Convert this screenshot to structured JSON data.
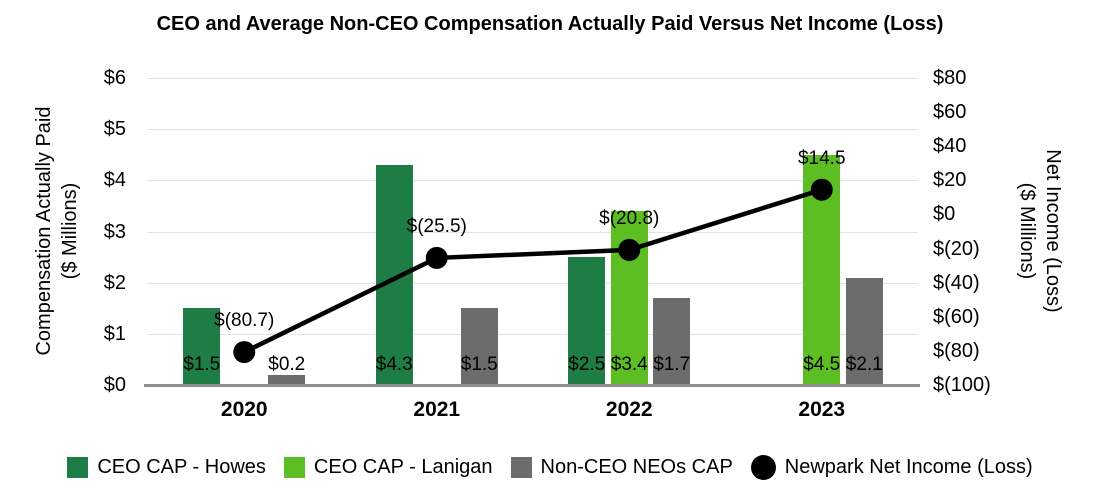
{
  "title": "CEO and Average Non-CEO Compensation Actually Paid Versus Net Income (Loss)",
  "colors": {
    "howes_green": "#1e7c45",
    "lanigan_green": "#5cbe23",
    "neo_gray": "#6c6c6c",
    "line_black": "#000000",
    "gridline": "#e2e2e2",
    "axis_line": "#8f8f8f"
  },
  "chart_data": {
    "type": "bar",
    "subtype": "grouped bars with overlay line on secondary axis",
    "categories": [
      "2020",
      "2021",
      "2022",
      "2023"
    ],
    "series": [
      {
        "name": "CEO CAP - Howes",
        "kind": "bar",
        "color": "#1e7c45",
        "values": [
          1.5,
          4.3,
          2.5,
          null
        ],
        "labels": [
          "$1.5",
          "$4.3",
          "$2.5",
          null
        ]
      },
      {
        "name": "CEO CAP - Lanigan",
        "kind": "bar",
        "color": "#5cbe23",
        "values": [
          null,
          null,
          3.4,
          4.5
        ],
        "labels": [
          null,
          null,
          "$3.4",
          "$4.5"
        ]
      },
      {
        "name": "Non-CEO NEOs CAP",
        "kind": "bar",
        "color": "#6c6c6c",
        "values": [
          0.2,
          1.5,
          1.7,
          2.1
        ],
        "labels": [
          "$0.2",
          "$1.5",
          "$1.7",
          "$2.1"
        ]
      },
      {
        "name": "Newpark Net Income (Loss)",
        "kind": "line",
        "color": "#000000",
        "axis": "right",
        "values": [
          -80.7,
          -25.5,
          -20.8,
          14.5
        ],
        "labels": [
          "$(80.7)",
          "$(25.5)",
          "$(20.8)",
          "$14.5"
        ]
      }
    ],
    "left_axis": {
      "title_lines": [
        "Compensation Actually Paid",
        "($ Millions)"
      ],
      "min": 0,
      "max": 6,
      "ticks": [
        {
          "v": 6,
          "label": "$6"
        },
        {
          "v": 5,
          "label": "$5"
        },
        {
          "v": 4,
          "label": "$4"
        },
        {
          "v": 3,
          "label": "$3"
        },
        {
          "v": 2,
          "label": "$2"
        },
        {
          "v": 1,
          "label": "$1"
        },
        {
          "v": 0,
          "label": "$0"
        }
      ]
    },
    "right_axis": {
      "title_lines": [
        "Net Income (Loss)",
        "($ Millions)"
      ],
      "min": -100,
      "max": 80,
      "ticks": [
        {
          "v": 80,
          "label": "$80"
        },
        {
          "v": 60,
          "label": "$60"
        },
        {
          "v": 40,
          "label": "$40"
        },
        {
          "v": 20,
          "label": "$20"
        },
        {
          "v": 0,
          "label": "$0"
        },
        {
          "v": -20,
          "label": "$(20)"
        },
        {
          "v": -40,
          "label": "$(40)"
        },
        {
          "v": -60,
          "label": "$(60)"
        },
        {
          "v": -80,
          "label": "$(80)"
        },
        {
          "v": -100,
          "label": "$(100)"
        }
      ]
    },
    "grid": "horizontal gridlines at left-axis ticks",
    "legend_position": "bottom",
    "legend": [
      {
        "label": "CEO CAP - Howes",
        "swatch": "square",
        "color": "#1e7c45"
      },
      {
        "label": "CEO CAP - Lanigan",
        "swatch": "square",
        "color": "#5cbe23"
      },
      {
        "label": "Non-CEO NEOs CAP",
        "swatch": "square",
        "color": "#6c6c6c"
      },
      {
        "label": "Newpark Net Income (Loss)",
        "swatch": "circle",
        "color": "#000000"
      }
    ]
  }
}
